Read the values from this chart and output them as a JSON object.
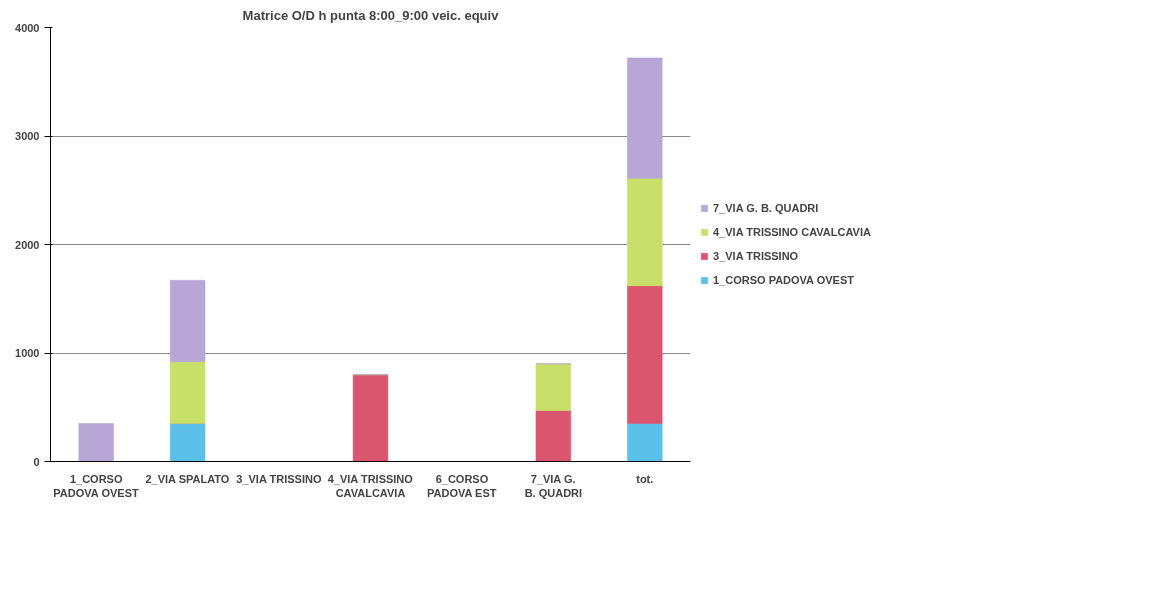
{
  "chart_data": {
    "type": "bar",
    "title": "Matrice O/D h punta 8:00_9:00 veic. equiv",
    "categories": [
      "1_CORSO PADOVA OVEST",
      "2_VIA SPALATO",
      "3_VIA TRISSINO",
      "4_VIA TRISSINO CAVALCAVIA",
      "6_CORSO PADOVA EST",
      "7_VIA G. B. QUADRI",
      "tot."
    ],
    "series": [
      {
        "name": "1_CORSO PADOVA OVEST",
        "color": "#5bc0e8",
        "values": [
          0,
          350,
          0,
          0,
          0,
          0,
          350
        ]
      },
      {
        "name": "3_VIA TRISSINO",
        "color": "#d9566e",
        "values": [
          0,
          0,
          0,
          800,
          0,
          470,
          1270
        ]
      },
      {
        "name": "4_VIA TRISSINO CAVALCAVIA",
        "color": "#c8e06a",
        "values": [
          0,
          570,
          0,
          0,
          0,
          430,
          990
        ]
      },
      {
        "name": "7_VIA G. B. QUADRI",
        "color": "#b7a6d6",
        "values": [
          350,
          750,
          0,
          0,
          0,
          0,
          1110
        ]
      }
    ],
    "stacked": true,
    "ylim": [
      0,
      4000
    ],
    "yticks": [
      0,
      1000,
      2000,
      3000,
      4000
    ],
    "grid": "y",
    "legend": "right"
  }
}
